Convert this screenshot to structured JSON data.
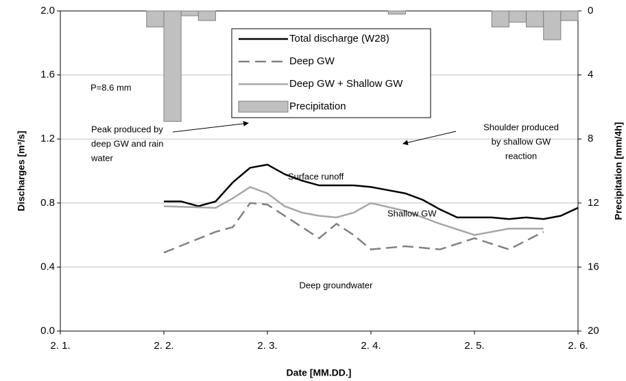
{
  "chart_data": {
    "type": "line",
    "xlabel": "Date [MM.DD.]",
    "ylabel": "Discharges [m³/s]",
    "y2label": "Precipitation [mm/4h]",
    "xlim": [
      1,
      6
    ],
    "xticks": [
      {
        "value": 1,
        "label": "2. 1."
      },
      {
        "value": 2,
        "label": "2. 2."
      },
      {
        "value": 3,
        "label": "2. 3."
      },
      {
        "value": 4,
        "label": "2. 4."
      },
      {
        "value": 5,
        "label": "2. 5."
      },
      {
        "value": 6,
        "label": "2. 6."
      }
    ],
    "ylim": [
      0,
      2
    ],
    "yticks": [
      {
        "value": 0,
        "label": "0.0"
      },
      0.4,
      0.8,
      1.2,
      1.6,
      {
        "value": 2,
        "label": "2.0"
      }
    ],
    "y2lim": [
      20,
      0
    ],
    "y2ticks": [
      0,
      4,
      8,
      12,
      16,
      20
    ],
    "grid": true,
    "series": [
      {
        "name": "Total discharge (W28)",
        "color": "#000000",
        "dashed": false,
        "width": 2.5,
        "x": [
          2,
          2.167,
          2.333,
          2.5,
          2.667,
          2.833,
          3,
          3.167,
          3.333,
          3.5,
          3.667,
          3.833,
          4,
          4.167,
          4.333,
          4.5,
          4.667,
          4.833,
          5,
          5.167,
          5.333,
          5.5,
          5.667,
          5.833,
          6
        ],
        "values": [
          0.81,
          0.81,
          0.78,
          0.81,
          0.93,
          1.02,
          1.04,
          0.98,
          0.94,
          0.91,
          0.91,
          0.91,
          0.9,
          0.88,
          0.86,
          0.82,
          0.76,
          0.71,
          0.71,
          0.71,
          0.7,
          0.71,
          0.7,
          0.72,
          0.77
        ]
      },
      {
        "name": "Deep GW",
        "color": "#808080",
        "dashed": true,
        "width": 2.5,
        "x": [
          2,
          2.5,
          2.667,
          2.833,
          3,
          3.167,
          3.333,
          3.5,
          3.667,
          3.833,
          4,
          4.333,
          4.667,
          5,
          5.333,
          5.667
        ],
        "values": [
          0.49,
          0.62,
          0.65,
          0.8,
          0.79,
          0.72,
          0.65,
          0.58,
          0.67,
          0.6,
          0.51,
          0.53,
          0.51,
          0.58,
          0.51,
          0.62
        ]
      },
      {
        "name": "Deep GW + Shallow GW",
        "color": "#a6a6a6",
        "dashed": false,
        "width": 2.5,
        "x": [
          2,
          2.5,
          2.667,
          2.833,
          3,
          3.167,
          3.333,
          3.5,
          3.667,
          3.833,
          4,
          4.333,
          4.667,
          5,
          5.333,
          5.667
        ],
        "values": [
          0.78,
          0.77,
          0.83,
          0.9,
          0.86,
          0.78,
          0.74,
          0.72,
          0.71,
          0.74,
          0.8,
          0.75,
          0.67,
          0.6,
          0.64,
          0.64
        ]
      },
      {
        "name": "Precipitation",
        "type": "bar",
        "axis": "y2",
        "color": "#c0c0c0",
        "x": [
          1.833,
          2,
          2.167,
          2.333,
          4.167,
          5.167,
          5.333,
          5.5,
          5.667,
          5.833
        ],
        "values": [
          1.0,
          6.9,
          0.3,
          0.6,
          0.2,
          1.0,
          0.7,
          1.0,
          1.8,
          0.6
        ]
      }
    ],
    "annotations": [
      {
        "lines": [
          "P=8.6 mm"
        ]
      },
      {
        "lines": [
          "Peak produced by",
          "deep GW and rain",
          "water"
        ]
      },
      {
        "lines": [
          "Shoulder produced",
          "by shallow GW",
          "reaction"
        ]
      },
      {
        "lines": [
          "Surface runoff"
        ]
      },
      {
        "lines": [
          "Shallow GW"
        ]
      },
      {
        "lines": [
          "Deep groundwater"
        ]
      }
    ]
  }
}
